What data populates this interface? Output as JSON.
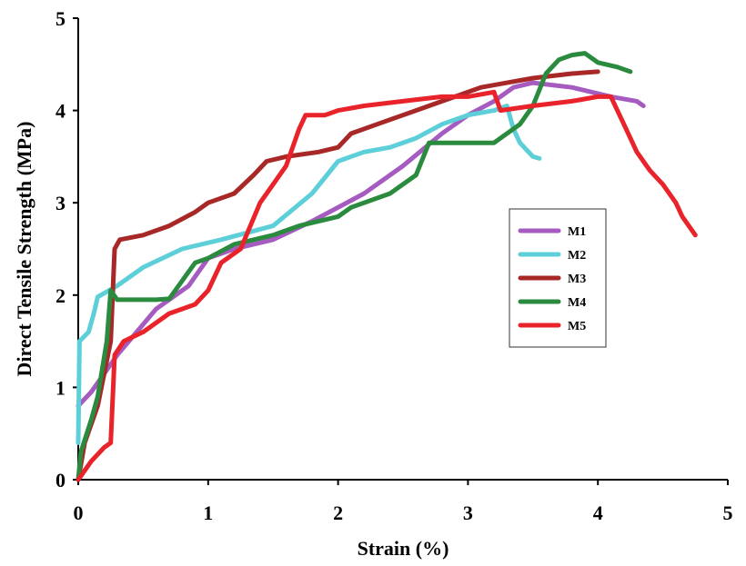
{
  "chart_data": {
    "type": "line",
    "xlabel": "Strain (%)",
    "ylabel": "Direct Tensile Strength (MPa)",
    "xlim": [
      0,
      5
    ],
    "ylim": [
      0,
      5
    ],
    "xticks": [
      "0",
      "1",
      "2",
      "3",
      "4",
      "5"
    ],
    "yticks": [
      "0",
      "1",
      "2",
      "3",
      "4",
      "5"
    ],
    "grid": false,
    "legend_position": "center-right",
    "series": [
      {
        "name": "M1",
        "color": "#a55bc0",
        "points": [
          [
            0,
            0.8
          ],
          [
            0.1,
            0.95
          ],
          [
            0.2,
            1.15
          ],
          [
            0.3,
            1.35
          ],
          [
            0.45,
            1.6
          ],
          [
            0.6,
            1.85
          ],
          [
            0.75,
            2.0
          ],
          [
            0.85,
            2.1
          ],
          [
            1.0,
            2.4
          ],
          [
            1.2,
            2.5
          ],
          [
            1.5,
            2.6
          ],
          [
            1.8,
            2.8
          ],
          [
            2.0,
            2.95
          ],
          [
            2.2,
            3.1
          ],
          [
            2.5,
            3.4
          ],
          [
            2.8,
            3.75
          ],
          [
            3.0,
            3.95
          ],
          [
            3.2,
            4.1
          ],
          [
            3.35,
            4.25
          ],
          [
            3.5,
            4.3
          ],
          [
            3.8,
            4.25
          ],
          [
            4.1,
            4.15
          ],
          [
            4.3,
            4.1
          ],
          [
            4.35,
            4.05
          ]
        ]
      },
      {
        "name": "M2",
        "color": "#5dcfd9",
        "points": [
          [
            0,
            0.4
          ],
          [
            0.01,
            1.5
          ],
          [
            0.08,
            1.6
          ],
          [
            0.12,
            1.8
          ],
          [
            0.15,
            1.98
          ],
          [
            0.3,
            2.1
          ],
          [
            0.5,
            2.3
          ],
          [
            0.8,
            2.5
          ],
          [
            1.1,
            2.6
          ],
          [
            1.5,
            2.75
          ],
          [
            1.8,
            3.1
          ],
          [
            2.0,
            3.45
          ],
          [
            2.2,
            3.55
          ],
          [
            2.4,
            3.6
          ],
          [
            2.6,
            3.7
          ],
          [
            2.8,
            3.85
          ],
          [
            3.0,
            3.95
          ],
          [
            3.2,
            4.0
          ],
          [
            3.3,
            4.05
          ],
          [
            3.35,
            3.8
          ],
          [
            3.4,
            3.65
          ],
          [
            3.5,
            3.5
          ],
          [
            3.55,
            3.48
          ]
        ]
      },
      {
        "name": "M3",
        "color": "#a82828",
        "points": [
          [
            0,
            0
          ],
          [
            0.05,
            0.4
          ],
          [
            0.15,
            0.8
          ],
          [
            0.25,
            1.5
          ],
          [
            0.28,
            2.5
          ],
          [
            0.32,
            2.6
          ],
          [
            0.5,
            2.65
          ],
          [
            0.7,
            2.75
          ],
          [
            0.9,
            2.9
          ],
          [
            1.0,
            3.0
          ],
          [
            1.2,
            3.1
          ],
          [
            1.35,
            3.3
          ],
          [
            1.45,
            3.45
          ],
          [
            1.6,
            3.5
          ],
          [
            1.85,
            3.55
          ],
          [
            2.0,
            3.6
          ],
          [
            2.1,
            3.75
          ],
          [
            2.3,
            3.85
          ],
          [
            2.5,
            3.95
          ],
          [
            2.7,
            4.05
          ],
          [
            2.9,
            4.15
          ],
          [
            3.1,
            4.25
          ],
          [
            3.3,
            4.3
          ],
          [
            3.5,
            4.35
          ],
          [
            3.8,
            4.4
          ],
          [
            4.0,
            4.42
          ]
        ]
      },
      {
        "name": "M4",
        "color": "#2a8a3e",
        "points": [
          [
            0,
            0
          ],
          [
            0.02,
            0.3
          ],
          [
            0.1,
            0.65
          ],
          [
            0.15,
            0.9
          ],
          [
            0.22,
            1.5
          ],
          [
            0.25,
            2.05
          ],
          [
            0.3,
            1.95
          ],
          [
            0.45,
            1.95
          ],
          [
            0.6,
            1.95
          ],
          [
            0.7,
            1.96
          ],
          [
            0.9,
            2.35
          ],
          [
            1.0,
            2.4
          ],
          [
            1.2,
            2.55
          ],
          [
            1.5,
            2.65
          ],
          [
            1.7,
            2.75
          ],
          [
            2.0,
            2.85
          ],
          [
            2.1,
            2.95
          ],
          [
            2.4,
            3.1
          ],
          [
            2.6,
            3.3
          ],
          [
            2.7,
            3.65
          ],
          [
            3.0,
            3.65
          ],
          [
            3.2,
            3.65
          ],
          [
            3.3,
            3.75
          ],
          [
            3.4,
            3.85
          ],
          [
            3.5,
            4.05
          ],
          [
            3.6,
            4.4
          ],
          [
            3.7,
            4.55
          ],
          [
            3.8,
            4.6
          ],
          [
            3.9,
            4.62
          ],
          [
            4.0,
            4.52
          ],
          [
            4.15,
            4.47
          ],
          [
            4.25,
            4.42
          ]
        ]
      },
      {
        "name": "M5",
        "color": "#e8232a",
        "points": [
          [
            0,
            0
          ],
          [
            0.1,
            0.2
          ],
          [
            0.2,
            0.35
          ],
          [
            0.25,
            0.4
          ],
          [
            0.28,
            1.35
          ],
          [
            0.35,
            1.5
          ],
          [
            0.5,
            1.6
          ],
          [
            0.7,
            1.8
          ],
          [
            0.9,
            1.9
          ],
          [
            1.0,
            2.05
          ],
          [
            1.1,
            2.35
          ],
          [
            1.25,
            2.5
          ],
          [
            1.4,
            3.0
          ],
          [
            1.5,
            3.2
          ],
          [
            1.6,
            3.4
          ],
          [
            1.7,
            3.8
          ],
          [
            1.75,
            3.95
          ],
          [
            1.9,
            3.95
          ],
          [
            2.0,
            4.0
          ],
          [
            2.2,
            4.05
          ],
          [
            2.5,
            4.1
          ],
          [
            2.8,
            4.15
          ],
          [
            3.0,
            4.15
          ],
          [
            3.2,
            4.2
          ],
          [
            3.25,
            4.0
          ],
          [
            3.5,
            4.05
          ],
          [
            3.8,
            4.1
          ],
          [
            4.0,
            4.15
          ],
          [
            4.1,
            4.15
          ],
          [
            4.2,
            3.85
          ],
          [
            4.3,
            3.55
          ],
          [
            4.4,
            3.35
          ],
          [
            4.5,
            3.2
          ],
          [
            4.6,
            3.0
          ],
          [
            4.65,
            2.85
          ],
          [
            4.75,
            2.65
          ]
        ]
      }
    ]
  }
}
